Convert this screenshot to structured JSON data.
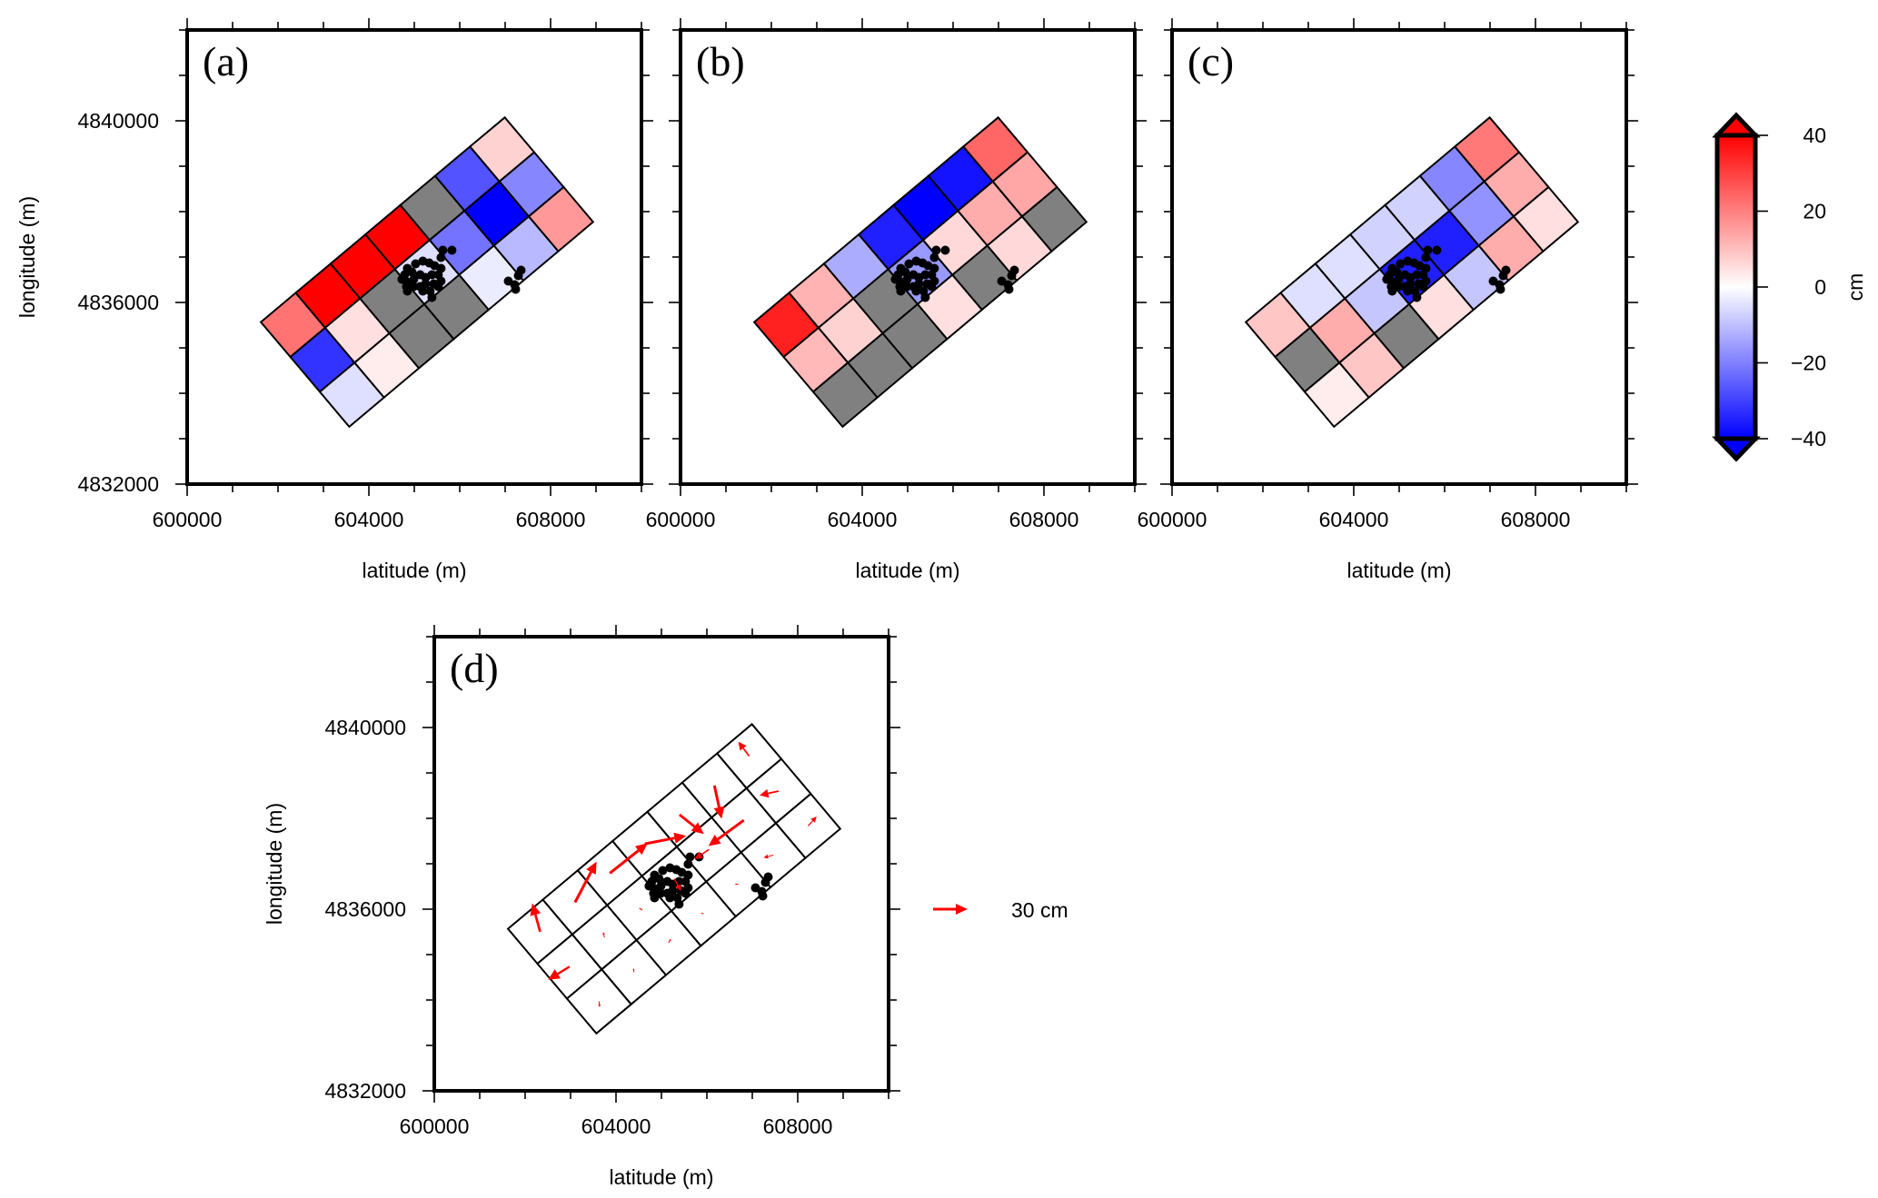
{
  "chart_data": {
    "type": "heatmap",
    "description": "Rotated 3x7 grid of cell values (cm) over map coordinates, three scalar panels and one vector panel",
    "x_axis": {
      "label": "latitude (m)",
      "range": [
        600000,
        610000
      ],
      "major_ticks": [
        600000,
        604000,
        608000
      ],
      "minor_tick_step": 1000
    },
    "y_axis": {
      "label": "longitude (m)",
      "range": [
        4832000,
        4842000
      ],
      "major_ticks": [
        4832000,
        4836000,
        4840000
      ],
      "minor_tick_step": 1000
    },
    "grid": {
      "rows": 3,
      "cols": 7,
      "origin": [
        601623,
        4835567
      ],
      "along_step": [
        767,
        644
      ],
      "across_step": [
        648,
        -768
      ],
      "note": "cols run SW->NE along the long axis; row 0 is the NW edge, row 2 the SE edge; null = no data (gray)"
    },
    "colorbar": {
      "label": "cm",
      "range": [
        -40,
        40
      ],
      "ticks": [
        "40",
        "20",
        "0",
        "−20",
        "−40"
      ],
      "tick_values": [
        40,
        20,
        0,
        -20,
        -40
      ],
      "colormap": "polar (blue-white-red)",
      "nan_color": "#808080",
      "colors": {
        "positive": "#ff0000",
        "zero": "#ffffff",
        "negative": "#0000ff"
      }
    },
    "panels": [
      {
        "label": "(a)",
        "show_y_labels": true,
        "values": [
          [
            22,
            40,
            40,
            40,
            null,
            -27,
            7
          ],
          [
            -32,
            5,
            null,
            -5,
            -22,
            -40,
            -19
          ],
          [
            -5,
            3,
            null,
            null,
            -3,
            -11,
            16
          ]
        ]
      },
      {
        "label": "(b)",
        "show_y_labels": false,
        "values": [
          [
            35,
            12,
            -13,
            -35,
            -40,
            -37,
            24
          ],
          [
            11,
            7,
            null,
            -16,
            6,
            13,
            14
          ],
          [
            null,
            null,
            null,
            5,
            null,
            6,
            null
          ]
        ]
      },
      {
        "label": "(c)",
        "show_y_labels": false,
        "values": [
          [
            9,
            -5,
            -5,
            -7,
            -7,
            -19,
            21
          ],
          [
            null,
            13,
            -9,
            -35,
            -35,
            -17,
            13
          ],
          [
            3,
            9,
            null,
            5,
            -9,
            13,
            5
          ]
        ]
      },
      {
        "label": "(d)",
        "show_y_labels": true,
        "type": "vector",
        "vector_color": "#ff0000",
        "vectors_cm": [
          [
            [
              -6.9,
              24.7
            ],
            [
              18.7,
              35.5
            ],
            [
              32.9,
              26.1
            ],
            [
              36.1,
              7.1
            ],
            [
              21.1,
              -16.8
            ],
            [
              6.3,
              -29.0
            ],
            [
              -9.5,
              12.6
            ]
          ],
          [
            [
              -18.7,
              -11.6
            ],
            [
              -1.1,
              4.5
            ],
            [
              2.9,
              -2.1
            ],
            [
              6.1,
              -10.5
            ],
            [
              -12.4,
              -8.2
            ],
            [
              -30.8,
              -22.4
            ],
            [
              -16.6,
              -3.7
            ]
          ],
          [
            [
              0.5,
              -5.0
            ],
            [
              -0.3,
              3.4
            ],
            [
              1.8,
              3.7
            ],
            [
              -2.4,
              0.5
            ],
            [
              -3.2,
              0.3
            ],
            [
              -8.4,
              -2.1
            ],
            [
              7.4,
              8.2
            ]
          ]
        ]
      }
    ],
    "vector_legend": {
      "value": 30,
      "label": "30 cm"
    },
    "points": {
      "color": "#000000",
      "xy": [
        [
          605628,
          4837150
        ],
        [
          605828,
          4837150
        ],
        [
          605588,
          4836990
        ],
        [
          605027,
          4836850
        ],
        [
          605187,
          4836910
        ],
        [
          605328,
          4836870
        ],
        [
          605448,
          4836810
        ],
        [
          605588,
          4836750
        ],
        [
          604847,
          4836750
        ],
        [
          604947,
          4836670
        ],
        [
          604787,
          4836610
        ],
        [
          604727,
          4836510
        ],
        [
          604847,
          4836450
        ],
        [
          604987,
          4836510
        ],
        [
          605127,
          4836610
        ],
        [
          605247,
          4836550
        ],
        [
          605388,
          4836610
        ],
        [
          605528,
          4836610
        ],
        [
          605588,
          4836470
        ],
        [
          605428,
          4836410
        ],
        [
          605247,
          4836410
        ],
        [
          605127,
          4836350
        ],
        [
          604987,
          4836350
        ],
        [
          604847,
          4836250
        ],
        [
          604827,
          4836350
        ],
        [
          605187,
          4836250
        ],
        [
          605348,
          4836250
        ],
        [
          605528,
          4836350
        ],
        [
          605388,
          4836110
        ],
        [
          607350,
          4836710
        ],
        [
          607290,
          4836590
        ],
        [
          607070,
          4836470
        ],
        [
          607210,
          4836390
        ],
        [
          607230,
          4836290
        ]
      ]
    }
  }
}
